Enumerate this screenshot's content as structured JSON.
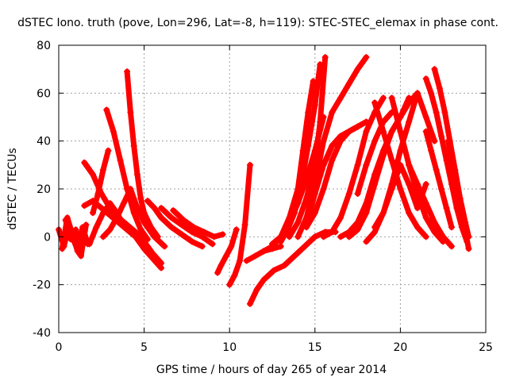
{
  "chart_data": {
    "type": "scatter",
    "title": "dSTEC Iono. truth (pove, Lon=296, Lat=-8, h=119): STEC-STEC_elemax in phase cont.",
    "xlabel": "GPS time / hours of day 265 of year 2014",
    "ylabel": "dSTEC  / TECUs",
    "xlim": [
      0,
      25
    ],
    "ylim": [
      -40,
      80
    ],
    "xticks": [
      0,
      5,
      10,
      15,
      20,
      25
    ],
    "yticks": [
      -40,
      -20,
      0,
      20,
      40,
      60,
      80
    ],
    "grid": true,
    "marker": "plus",
    "color": "#ff0000",
    "series": [
      {
        "x": [
          0.0,
          0.3,
          0.6,
          0.9,
          1.2,
          1.5
        ],
        "y": [
          3,
          -4,
          5,
          -2,
          -7,
          2
        ]
      },
      {
        "x": [
          0.2,
          0.5,
          0.8,
          1.1,
          1.4,
          1.7
        ],
        "y": [
          -5,
          8,
          1,
          -6,
          4,
          -3
        ]
      },
      {
        "x": [
          0.4,
          0.7,
          1.0,
          1.3,
          1.6
        ],
        "y": [
          7,
          -1,
          3,
          -8,
          5
        ]
      },
      {
        "x": [
          1.5,
          2.0,
          2.5,
          3.0,
          3.5,
          4.0,
          4.5,
          5.0,
          5.5,
          6.0
        ],
        "y": [
          31,
          26,
          18,
          12,
          8,
          5,
          2,
          -2,
          -7,
          -11
        ]
      },
      {
        "x": [
          1.5,
          2.0,
          2.5,
          3.0,
          3.5,
          4.0,
          4.5,
          5.0,
          5.5,
          6.0
        ],
        "y": [
          13,
          15,
          12,
          9,
          6,
          3,
          0,
          -5,
          -9,
          -13
        ]
      },
      {
        "x": [
          1.8,
          2.2,
          2.6,
          3.0,
          3.4,
          3.8,
          4.2
        ],
        "y": [
          -3,
          4,
          10,
          14,
          10,
          5,
          2
        ]
      },
      {
        "x": [
          2.0,
          2.3,
          2.6,
          2.9
        ],
        "y": [
          10,
          18,
          28,
          36
        ]
      },
      {
        "x": [
          2.8,
          3.2,
          3.6,
          4.0,
          4.4,
          4.8,
          5.2
        ],
        "y": [
          53,
          44,
          32,
          20,
          10,
          3,
          -1
        ]
      },
      {
        "x": [
          4.0,
          4.2,
          4.4,
          4.6,
          4.8,
          5.0,
          5.4,
          5.8
        ],
        "y": [
          69,
          52,
          38,
          26,
          16,
          10,
          4,
          0
        ]
      },
      {
        "x": [
          2.6,
          3.0,
          3.4,
          3.8,
          4.2,
          4.6,
          5.0,
          5.6,
          6.2
        ],
        "y": [
          0,
          3,
          8,
          14,
          20,
          12,
          6,
          0,
          -4
        ]
      },
      {
        "x": [
          5.2,
          5.6,
          6.0,
          6.6,
          7.2,
          7.8,
          8.4
        ],
        "y": [
          15,
          12,
          8,
          4,
          1,
          -2,
          -4
        ]
      },
      {
        "x": [
          6.0,
          6.6,
          7.2,
          7.8,
          8.4,
          9.0
        ],
        "y": [
          12,
          8,
          5,
          2,
          0,
          -3
        ]
      },
      {
        "x": [
          6.7,
          7.3,
          7.9,
          8.5,
          9.1,
          9.6
        ],
        "y": [
          11,
          7,
          4,
          2,
          0,
          1
        ]
      },
      {
        "x": [
          9.3,
          9.5,
          9.8,
          10.1,
          10.4
        ],
        "y": [
          -15,
          -12,
          -8,
          -4,
          3
        ]
      },
      {
        "x": [
          10.0,
          10.3,
          10.6,
          10.9,
          11.2
        ],
        "y": [
          -20,
          -16,
          -10,
          5,
          30
        ]
      },
      {
        "x": [
          11.2,
          11.6,
          12.0,
          12.6,
          13.2,
          13.8,
          14.4,
          15.0,
          15.6,
          16.2
        ],
        "y": [
          -28,
          -22,
          -18,
          -14,
          -12,
          -8,
          -4,
          0,
          2,
          2
        ]
      },
      {
        "x": [
          11.0,
          11.5,
          12.0,
          12.5,
          13.0
        ],
        "y": [
          -10,
          -8,
          -6,
          -5,
          -4
        ]
      },
      {
        "x": [
          12.5,
          13.0,
          13.5,
          14.0,
          14.3,
          14.6,
          14.9
        ],
        "y": [
          -3,
          0,
          8,
          20,
          36,
          52,
          65
        ]
      },
      {
        "x": [
          13.0,
          13.4,
          13.8,
          14.2,
          14.6,
          15.0,
          15.3
        ],
        "y": [
          -2,
          3,
          10,
          22,
          38,
          55,
          72
        ]
      },
      {
        "x": [
          13.5,
          14.0,
          14.5,
          15.0,
          15.3,
          15.6
        ],
        "y": [
          0,
          6,
          16,
          30,
          48,
          75
        ]
      },
      {
        "x": [
          14.0,
          14.5,
          15.0,
          15.5,
          16.0,
          16.5,
          17.0,
          17.5,
          18.0
        ],
        "y": [
          0,
          8,
          22,
          40,
          52,
          58,
          64,
          70,
          75
        ]
      },
      {
        "x": [
          14.5,
          15.0,
          15.5,
          16.0,
          16.5,
          17.0,
          17.5
        ],
        "y": [
          5,
          18,
          30,
          38,
          42,
          44,
          46
        ]
      },
      {
        "x": [
          12.0,
          12.5,
          13.0,
          13.5,
          14.0,
          14.5,
          15.0,
          15.5
        ],
        "y": [
          -6,
          -4,
          0,
          6,
          14,
          24,
          36,
          50
        ]
      },
      {
        "x": [
          14.5,
          15.0,
          15.5,
          16.0,
          16.5,
          17.0,
          17.5,
          18.0
        ],
        "y": [
          4,
          10,
          20,
          32,
          40,
          44,
          46,
          48
        ]
      },
      {
        "x": [
          15.5,
          16.0,
          16.5,
          17.0,
          17.5,
          18.0,
          18.5,
          19.0
        ],
        "y": [
          0,
          2,
          8,
          18,
          30,
          44,
          52,
          58
        ]
      },
      {
        "x": [
          16.5,
          17.0,
          17.5,
          18.0,
          18.5,
          19.0,
          19.5,
          20.0,
          20.5
        ],
        "y": [
          0,
          2,
          6,
          14,
          26,
          36,
          44,
          50,
          58
        ]
      },
      {
        "x": [
          17.0,
          17.5,
          18.0,
          18.5,
          19.0,
          19.5,
          20.0,
          20.5,
          21.0
        ],
        "y": [
          0,
          3,
          10,
          22,
          34,
          44,
          50,
          56,
          60
        ]
      },
      {
        "x": [
          18.0,
          18.5,
          19.0,
          19.5,
          20.0,
          20.5,
          21.0,
          21.5
        ],
        "y": [
          -2,
          2,
          10,
          20,
          30,
          22,
          12,
          22
        ]
      },
      {
        "x": [
          18.5,
          19.0,
          19.5,
          20.0,
          20.5,
          21.0,
          21.5,
          22.0
        ],
        "y": [
          4,
          10,
          22,
          36,
          48,
          60,
          50,
          40
        ]
      },
      {
        "x": [
          21.5,
          21.8,
          22.1,
          22.4,
          22.7,
          23.0,
          23.3,
          23.6,
          23.9
        ],
        "y": [
          66,
          60,
          52,
          42,
          32,
          22,
          12,
          4,
          -2
        ]
      },
      {
        "x": [
          22.0,
          22.3,
          22.6,
          22.9,
          23.2,
          23.5,
          23.8,
          24.0
        ],
        "y": [
          70,
          62,
          52,
          40,
          28,
          16,
          6,
          0
        ]
      },
      {
        "x": [
          21.5,
          21.8,
          22.1,
          22.4,
          22.7,
          23.0
        ],
        "y": [
          44,
          36,
          28,
          20,
          12,
          4
        ]
      },
      {
        "x": [
          22.8,
          23.1,
          23.4,
          23.7,
          24.0
        ],
        "y": [
          40,
          28,
          16,
          6,
          -5
        ]
      },
      {
        "x": [
          15.0,
          15.5,
          16.0,
          16.5,
          17.0,
          17.5,
          18.0
        ],
        "y": [
          24,
          30,
          38,
          42,
          44,
          46,
          48
        ]
      },
      {
        "x": [
          17.5,
          18.0,
          18.5,
          19.0,
          19.5
        ],
        "y": [
          18,
          30,
          40,
          48,
          52
        ]
      },
      {
        "x": [
          18.5,
          19.0,
          19.5,
          20.0,
          20.5,
          21.0,
          21.5
        ],
        "y": [
          56,
          44,
          32,
          20,
          10,
          4,
          0
        ]
      },
      {
        "x": [
          19.5,
          20.0,
          20.5,
          21.0,
          21.5,
          22.0,
          22.5
        ],
        "y": [
          58,
          44,
          30,
          18,
          8,
          2,
          -2
        ]
      },
      {
        "x": [
          20.5,
          21.0,
          21.5,
          22.0,
          22.5,
          23.0
        ],
        "y": [
          30,
          22,
          14,
          6,
          0,
          -4
        ]
      }
    ]
  }
}
